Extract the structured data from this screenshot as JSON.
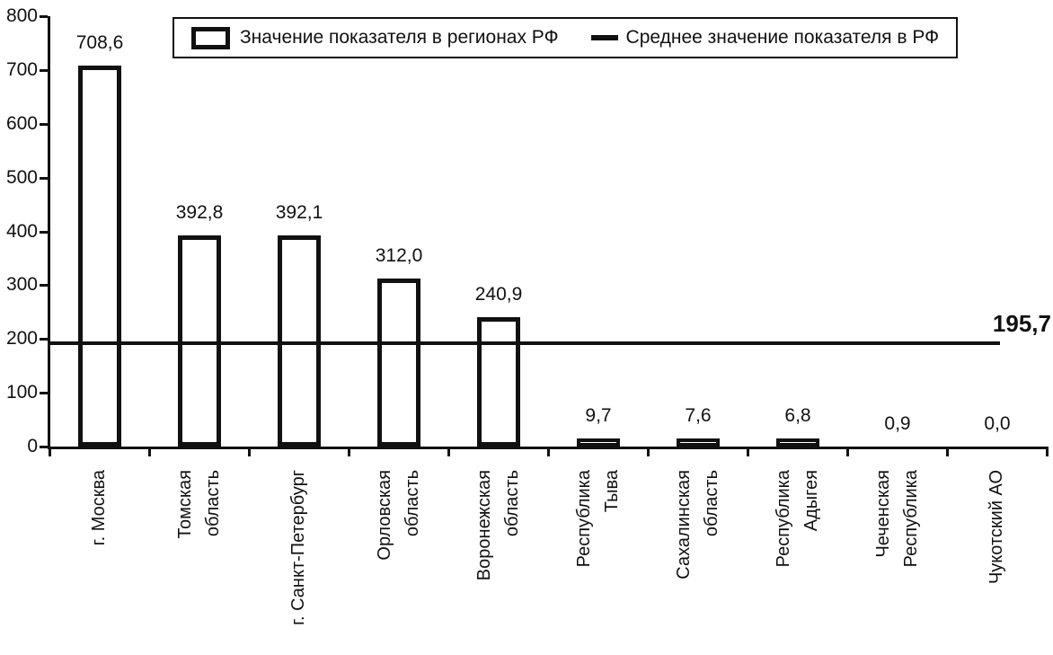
{
  "chart_data": {
    "type": "bar",
    "title": "",
    "xlabel": "",
    "ylabel": "",
    "categories": [
      "г. Москва",
      "Томская область",
      "г. Санкт-Петербург",
      "Орловская область",
      "Воронежская область",
      "Республика Тыва",
      "Сахалинская область",
      "Республика Адыгея",
      "Чеченская Республика",
      "Чукотский АО"
    ],
    "category_lines": [
      [
        "г. Москва"
      ],
      [
        "Томская",
        "область"
      ],
      [
        "г. Санкт-Петербург"
      ],
      [
        "Орловская",
        "область"
      ],
      [
        "Воронежская",
        "область"
      ],
      [
        "Республика",
        "Тыва"
      ],
      [
        "Сахалинская",
        "область"
      ],
      [
        "Республика",
        "Адыгея"
      ],
      [
        "Чеченская",
        "Республика"
      ],
      [
        "Чукотский АО"
      ]
    ],
    "series": [
      {
        "name": "Значение показателя в регионах РФ",
        "values": [
          708.6,
          392.8,
          392.1,
          312.0,
          240.9,
          9.7,
          7.6,
          6.8,
          0.9,
          0.0
        ]
      }
    ],
    "value_labels": [
      "708,6",
      "392,8",
      "392,1",
      "312,0",
      "240,9",
      "9,7",
      "7,6",
      "6,8",
      "0,9",
      "0,0"
    ],
    "average_line": {
      "name": "Среднее значение показателя в РФ",
      "value": 195.7,
      "label": "195,7"
    },
    "y_axis": {
      "min": 0,
      "max": 800,
      "step": 100,
      "ticks": [
        "0",
        "100",
        "200",
        "300",
        "400",
        "500",
        "600",
        "700",
        "800"
      ]
    },
    "ylim": [
      0,
      800
    ],
    "grid": false,
    "legend_position": "top"
  },
  "legend": {
    "bar_label": "Значение показателя в регионах РФ",
    "line_label": "Среднее значение показателя в РФ"
  },
  "colors": {
    "ink": "#111111",
    "background": "#ffffff",
    "bar_fill": "#ffffff",
    "bar_border": "#111111"
  }
}
